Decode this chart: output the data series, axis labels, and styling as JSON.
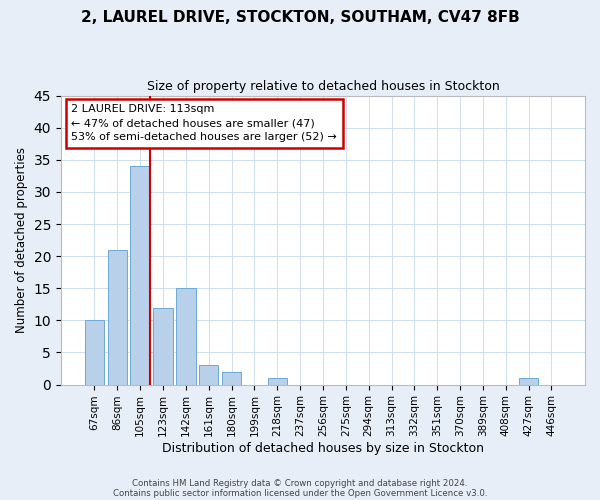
{
  "title": "2, LAUREL DRIVE, STOCKTON, SOUTHAM, CV47 8FB",
  "subtitle": "Size of property relative to detached houses in Stockton",
  "xlabel": "Distribution of detached houses by size in Stockton",
  "ylabel": "Number of detached properties",
  "bin_labels": [
    "67sqm",
    "86sqm",
    "105sqm",
    "123sqm",
    "142sqm",
    "161sqm",
    "180sqm",
    "199sqm",
    "218sqm",
    "237sqm",
    "256sqm",
    "275sqm",
    "294sqm",
    "313sqm",
    "332sqm",
    "351sqm",
    "370sqm",
    "389sqm",
    "408sqm",
    "427sqm",
    "446sqm"
  ],
  "bar_values": [
    10,
    21,
    34,
    12,
    15,
    3,
    2,
    0,
    1,
    0,
    0,
    0,
    0,
    0,
    0,
    0,
    0,
    0,
    0,
    1,
    0
  ],
  "bar_color": "#b8d0ea",
  "bar_edge_color": "#6aaad4",
  "vline_color": "#cc0000",
  "vline_x_index": 2.425,
  "ylim": [
    0,
    45
  ],
  "yticks": [
    0,
    5,
    10,
    15,
    20,
    25,
    30,
    35,
    40,
    45
  ],
  "annotation_title": "2 LAUREL DRIVE: 113sqm",
  "annotation_line1": "← 47% of detached houses are smaller (47)",
  "annotation_line2": "53% of semi-detached houses are larger (52) →",
  "annotation_box_color": "#cc0000",
  "footer_line1": "Contains HM Land Registry data © Crown copyright and database right 2024.",
  "footer_line2": "Contains public sector information licensed under the Open Government Licence v3.0.",
  "background_color": "#e8eef8",
  "plot_bg_color": "#ffffff",
  "grid_color": "#c8d8f0"
}
